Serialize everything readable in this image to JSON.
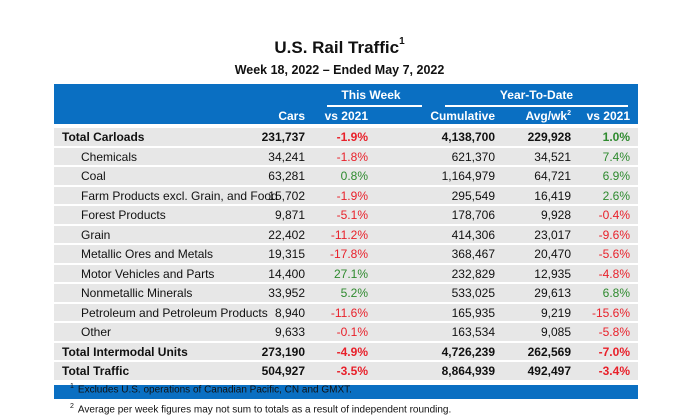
{
  "header": {
    "title": "U.S. Rail Traffic",
    "title_footnote": "1",
    "subtitle": "Week 18, 2022 – Ended May 7, 2022"
  },
  "columns": {
    "group_this_week": "This Week",
    "group_ytd": "Year-To-Date",
    "cars": "Cars",
    "vs2021_week": "vs 2021",
    "cumulative": "Cumulative",
    "avgwk": "Avg/wk",
    "avgwk_footnote": "2",
    "vs2021_ytd": "vs 2021"
  },
  "colors": {
    "header_blue": "#0a6fc2",
    "negative": "#e8202a",
    "positive": "#2e8a2e",
    "row_bg": "#e7e7e7"
  },
  "rows": [
    {
      "label": "Total Carloads",
      "type": "total",
      "cars": "231,737",
      "wk_vs": "-1.9%",
      "cum": "4,138,700",
      "avg": "229,928",
      "ytd_vs": "1.0%"
    },
    {
      "label": "Chemicals",
      "type": "sub",
      "cars": "34,241",
      "wk_vs": "-1.8%",
      "cum": "621,370",
      "avg": "34,521",
      "ytd_vs": "7.4%"
    },
    {
      "label": "Coal",
      "type": "sub",
      "cars": "63,281",
      "wk_vs": "0.8%",
      "cum": "1,164,979",
      "avg": "64,721",
      "ytd_vs": "6.9%"
    },
    {
      "label": "Farm Products excl. Grain, and Food",
      "type": "sub",
      "cars": "15,702",
      "wk_vs": "-1.9%",
      "cum": "295,549",
      "avg": "16,419",
      "ytd_vs": "2.6%"
    },
    {
      "label": "Forest Products",
      "type": "sub",
      "cars": "9,871",
      "wk_vs": "-5.1%",
      "cum": "178,706",
      "avg": "9,928",
      "ytd_vs": "-0.4%"
    },
    {
      "label": "Grain",
      "type": "sub",
      "cars": "22,402",
      "wk_vs": "-11.2%",
      "cum": "414,306",
      "avg": "23,017",
      "ytd_vs": "-9.6%"
    },
    {
      "label": "Metallic Ores and Metals",
      "type": "sub",
      "cars": "19,315",
      "wk_vs": "-17.8%",
      "cum": "368,467",
      "avg": "20,470",
      "ytd_vs": "-5.6%"
    },
    {
      "label": "Motor Vehicles and Parts",
      "type": "sub",
      "cars": "14,400",
      "wk_vs": "27.1%",
      "cum": "232,829",
      "avg": "12,935",
      "ytd_vs": "-4.8%"
    },
    {
      "label": "Nonmetallic Minerals",
      "type": "sub",
      "cars": "33,952",
      "wk_vs": "5.2%",
      "cum": "533,025",
      "avg": "29,613",
      "ytd_vs": "6.8%"
    },
    {
      "label": "Petroleum and Petroleum Products",
      "type": "sub",
      "cars": "8,940",
      "wk_vs": "-11.6%",
      "cum": "165,935",
      "avg": "9,219",
      "ytd_vs": "-15.6%"
    },
    {
      "label": "Other",
      "type": "sub",
      "cars": "9,633",
      "wk_vs": "-0.1%",
      "cum": "163,534",
      "avg": "9,085",
      "ytd_vs": "-5.8%"
    },
    {
      "label": "Total Intermodal Units",
      "type": "total",
      "cars": "273,190",
      "wk_vs": "-4.9%",
      "cum": "4,726,239",
      "avg": "262,569",
      "ytd_vs": "-7.0%"
    },
    {
      "label": "Total Traffic",
      "type": "total",
      "cars": "504,927",
      "wk_vs": "-3.5%",
      "cum": "8,864,939",
      "avg": "492,497",
      "ytd_vs": "-3.4%"
    }
  ],
  "footnotes": [
    {
      "mark": "1",
      "text": "Excludes U.S. operations of Canadian Pacific, CN and GMXT."
    },
    {
      "mark": "2",
      "text": "Average per week figures may not sum to totals as a result of independent rounding."
    }
  ]
}
